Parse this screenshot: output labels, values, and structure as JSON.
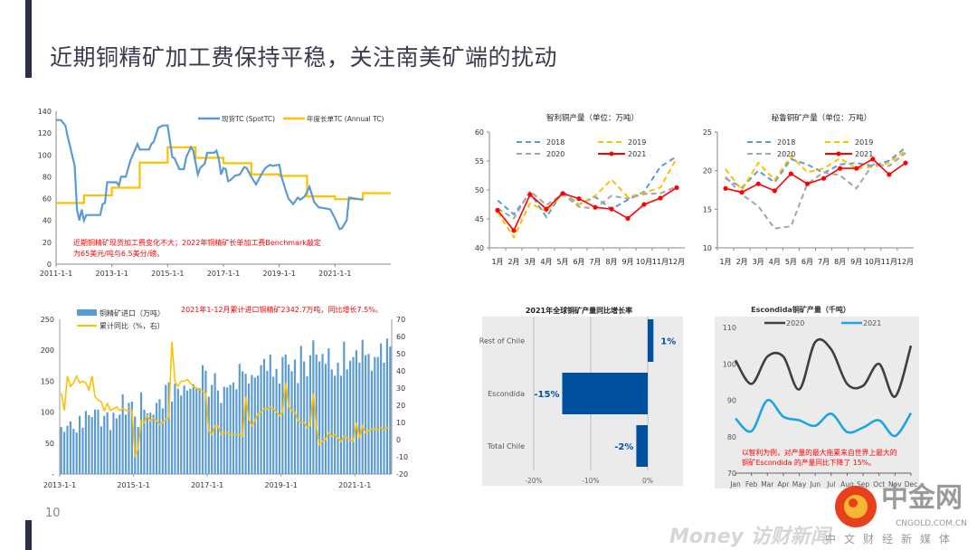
{
  "slide": {
    "title": "近期铜精矿加工费保持平稳，关注南美矿端的扰动",
    "page_number": "10",
    "watermark": {
      "brand": "中金网",
      "domain": "CNGOLD.COM.CN",
      "tagline": "中文财经新媒体",
      "sub": "Money 访财新闻"
    }
  },
  "colors": {
    "blue": "#5b9bd5",
    "yellow": "#ffc000",
    "gray": "#a5a5a5",
    "red": "#ff0000",
    "navy": "#0050a0",
    "dark": "#404040",
    "cyan": "#1ea5e0"
  },
  "chart_data": [
    {
      "type": "line",
      "ylim": [
        0,
        140
      ],
      "yticks": [
        "0",
        "20",
        "40",
        "60",
        "80",
        "100",
        "120",
        "140"
      ],
      "xticks": [
        "2011-1-1",
        "2013-1-1",
        "2015-1-1",
        "2017-1-1",
        "2019-1-1",
        "2021-1-1"
      ],
      "annotation": [
        "近期铜精矿现货加工费变化不大；2022年铜精矿长单加工费Benchmark敲定",
        "为65美元/吨与6.5美分/磅。"
      ],
      "series": [
        {
          "name": "现货TC (SpotTC)",
          "points": [
            [
              "2011-01",
              132
            ],
            [
              "2011-03",
              132
            ],
            [
              "2011-05",
              127
            ],
            [
              "2011-06",
              117
            ],
            [
              "2011-09",
              90
            ],
            [
              "2011-10",
              50
            ],
            [
              "2011-11",
              40
            ],
            [
              "2011-12",
              50
            ],
            [
              "2012-01",
              40
            ],
            [
              "2012-02",
              45
            ],
            [
              "2012-08",
              45
            ],
            [
              "2012-09",
              55
            ],
            [
              "2012-10",
              56
            ],
            [
              "2012-11",
              75
            ],
            [
              "2013-03",
              75
            ],
            [
              "2013-04",
              72
            ],
            [
              "2013-05",
              80
            ],
            [
              "2013-07",
              80
            ],
            [
              "2013-09",
              95
            ],
            [
              "2013-11",
              105
            ],
            [
              "2013-12",
              110
            ],
            [
              "2014-01",
              105
            ],
            [
              "2014-05",
              105
            ],
            [
              "2014-06",
              110
            ],
            [
              "2014-07",
              112
            ],
            [
              "2014-09",
              125
            ],
            [
              "2014-11",
              127
            ],
            [
              "2015-01",
              127
            ],
            [
              "2015-03",
              98
            ],
            [
              "2015-04",
              97
            ],
            [
              "2015-06",
              87
            ],
            [
              "2015-08",
              87
            ],
            [
              "2015-09",
              98
            ],
            [
              "2015-11",
              107
            ],
            [
              "2015-12",
              104
            ],
            [
              "2016-02",
              82
            ],
            [
              "2016-03",
              88
            ],
            [
              "2016-05",
              92
            ],
            [
              "2016-06",
              102
            ],
            [
              "2016-09",
              102
            ],
            [
              "2016-10",
              104
            ],
            [
              "2016-11",
              96
            ],
            [
              "2016-12",
              82
            ],
            [
              "2017-01",
              88
            ],
            [
              "2017-02",
              87
            ],
            [
              "2017-03",
              76
            ],
            [
              "2017-04",
              77
            ],
            [
              "2017-06",
              81
            ],
            [
              "2017-08",
              82
            ],
            [
              "2017-10",
              89
            ],
            [
              "2017-11",
              88
            ],
            [
              "2018-01",
              80
            ],
            [
              "2018-03",
              73
            ],
            [
              "2018-05",
              81
            ],
            [
              "2018-07",
              88
            ],
            [
              "2018-09",
              91
            ],
            [
              "2018-10",
              90
            ],
            [
              "2019-01",
              91
            ],
            [
              "2019-02",
              80
            ],
            [
              "2019-04",
              66
            ],
            [
              "2019-05",
              60
            ],
            [
              "2019-07",
              55
            ],
            [
              "2019-09",
              61
            ],
            [
              "2019-10",
              59
            ],
            [
              "2019-12",
              62
            ],
            [
              "2020-02",
              71
            ],
            [
              "2020-04",
              57
            ],
            [
              "2020-06",
              52
            ],
            [
              "2020-09",
              51
            ],
            [
              "2020-11",
              50
            ],
            [
              "2021-01",
              42
            ],
            [
              "2021-03",
              32
            ],
            [
              "2021-04",
              33
            ],
            [
              "2021-06",
              40
            ],
            [
              "2021-07",
              61
            ],
            [
              "2022-01",
              59
            ]
          ]
        },
        {
          "name": "年度长单TC (Annual TC)",
          "steps": [
            [
              2011,
              56
            ],
            [
              2012,
              63
            ],
            [
              2013,
              70
            ],
            [
              2014,
              93
            ],
            [
              2015,
              107
            ],
            [
              2016,
              97.35
            ],
            [
              2017,
              92.5
            ],
            [
              2018,
              82.25
            ],
            [
              2019,
              80.8
            ],
            [
              2020,
              62
            ],
            [
              2021,
              59.5
            ],
            [
              2022,
              65
            ]
          ]
        }
      ]
    },
    {
      "type": "line",
      "title": "智利铜产量（单位：万吨）",
      "ylim": [
        40,
        60
      ],
      "yticks": [
        "40",
        "45",
        "50",
        "55",
        "60"
      ],
      "categories": [
        "1月",
        "2月",
        "3月",
        "4月",
        "5月",
        "6月",
        "7月",
        "8月",
        "9月",
        "10月",
        "11月",
        "12月"
      ],
      "series": [
        {
          "name": "2018",
          "values": [
            48.2,
            45.8,
            49.5,
            45.3,
            49.7,
            47.5,
            48.8,
            46.7,
            48.3,
            49.7,
            54.0,
            55.8
          ]
        },
        {
          "name": "2019",
          "values": [
            46.2,
            41.8,
            47.7,
            46.3,
            49.3,
            47.5,
            49.0,
            51.8,
            48.8,
            49.5,
            50.4,
            55.5
          ]
        },
        {
          "name": "2020",
          "values": [
            46.8,
            45.1,
            49.8,
            47.4,
            49.3,
            47.1,
            46.8,
            49.0,
            48.5,
            49.3,
            49.4,
            50.6
          ]
        },
        {
          "name": "2021",
          "values": [
            46.5,
            43.0,
            49.2,
            46.7,
            49.4,
            48.5,
            47.0,
            46.7,
            45.1,
            47.5,
            48.6,
            50.4
          ]
        }
      ]
    },
    {
      "type": "line",
      "title": "秘鲁铜矿产量（单位：万吨）",
      "ylim": [
        10,
        25
      ],
      "yticks": [
        "10",
        "15",
        "20",
        "25"
      ],
      "categories": [
        "1月",
        "2月",
        "3月",
        "4月",
        "5月",
        "6月",
        "7月",
        "8月",
        "9月",
        "10月",
        "11月",
        "12月"
      ],
      "series": [
        {
          "name": "2018",
          "values": [
            19.0,
            17.8,
            20.0,
            18.5,
            21.5,
            20.8,
            19.7,
            20.8,
            21.0,
            20.6,
            21.3,
            23.0
          ]
        },
        {
          "name": "2019",
          "values": [
            20.2,
            17.5,
            21.0,
            18.8,
            21.9,
            19.8,
            20.3,
            21.6,
            20.3,
            20.5,
            21.0,
            22.6
          ]
        },
        {
          "name": "2020",
          "values": [
            19.2,
            16.9,
            15.4,
            12.5,
            12.8,
            18.3,
            19.8,
            19.4,
            17.7,
            20.8,
            20.6,
            22.3
          ]
        },
        {
          "name": "2021",
          "values": [
            17.7,
            17.2,
            18.3,
            17.4,
            19.6,
            18.3,
            19.0,
            20.3,
            20.3,
            21.5,
            19.5,
            21.0
          ]
        }
      ]
    },
    {
      "type": "bar",
      "ylim": [
        0,
        250
      ],
      "yticks": [
        "-",
        "50",
        "100",
        "150",
        "200",
        "250"
      ],
      "y2lim": [
        -20,
        70
      ],
      "y2ticks": [
        "-20",
        "-10",
        "0",
        "10",
        "20",
        "30",
        "40",
        "50",
        "60",
        "70"
      ],
      "xticks": [
        "2013-1-1",
        "2015-1-1",
        "2017-1-1",
        "2019-1-1",
        "2021-1-1"
      ],
      "annotation": "2021年1-12月累计进口铜精矿2342.7万吨，同比增长7.5%。",
      "series": [
        {
          "name": "铜精矿进口（万吨）",
          "by_year": {
            "2013": [
              76,
              68,
              78,
              85,
              73,
              67,
              94,
              75,
              102,
              95,
              92,
              104
            ],
            "2014": [
              104,
              77,
              94,
              100,
              71,
              99,
              90,
              96,
              129,
              96,
              115,
              117
            ],
            "2015": [
              93,
              76,
              132,
              104,
              98,
              99,
              96,
              115,
              121,
              106,
              144,
              148
            ],
            "2016": [
              117,
              146,
              138,
              127,
              143,
              135,
              138,
              145,
              139,
              139,
              176,
              167
            ],
            "2017": [
              125,
              144,
              163,
              135,
              115,
              141,
              140,
              144,
              148,
              137,
              178,
              166
            ],
            "2018": [
              162,
              146,
              160,
              156,
              159,
              176,
              186,
              167,
              193,
              157,
              170,
              146
            ],
            "2019": [
              189,
              193,
              177,
              166,
              185,
              147,
              207,
              182,
              158,
              192,
              216,
              193
            ],
            "2020": [
              182,
              194,
              178,
              203,
              169,
              159,
              180,
              159,
              214,
              169,
              183,
              189
            ],
            "2021": [
              200,
              180,
              217,
              192,
              194,
              167,
              189,
              189,
              211,
              180,
              219,
              206
            ]
          }
        },
        {
          "name": "累计同比（%，右）",
          "axis": "right",
          "by_year": {
            "2013": [
              27,
              17,
              37,
              31,
              33,
              37,
              33,
              34,
              33,
              29,
              37,
              25
            ],
            "2014": [
              23,
              22,
              17,
              21,
              17,
              18,
              19,
              17,
              18,
              17,
              17,
              17
            ],
            "2015": [
              -10,
              -5,
              11,
              10,
              14,
              11,
              12,
              11,
              9,
              10,
              12,
              13
            ],
            "2016": [
              57,
              34,
              31,
              34,
              34,
              35,
              33,
              31,
              30,
              29,
              28,
              27
            ],
            "2017": [
              5,
              3,
              8,
              8,
              3,
              4,
              4,
              3,
              3,
              3,
              3,
              2
            ],
            "2018": [
              25,
              12,
              8,
              11,
              15,
              16,
              18,
              18,
              19,
              18,
              16,
              14
            ],
            "2019": [
              16,
              33,
              19,
              17,
              16,
              11,
              10,
              10,
              7,
              8,
              27,
              8
            ],
            "2020": [
              -3,
              -1,
              0,
              4,
              2,
              3,
              1,
              -1,
              2,
              1,
              0,
              -1
            ],
            "2021": [
              10,
              1,
              8,
              4,
              5,
              6,
              6,
              6,
              7,
              6,
              7,
              7.5
            ]
          }
        }
      ]
    },
    {
      "type": "bar",
      "orientation": "horizontal",
      "title": "2021年全球铜矿产量同比增长率",
      "categories": [
        "Rest of Chile",
        "Escondida",
        "Total Chile"
      ],
      "values": [
        1,
        -15,
        -2
      ],
      "data_labels": [
        "1%",
        "-15%",
        "-2%"
      ],
      "xticks": [
        "-20%",
        "-10%",
        "0%"
      ],
      "xlim": [
        -20,
        5
      ]
    },
    {
      "type": "line",
      "title": "Escondida铜矿产量（千吨）",
      "ylim": [
        70,
        110
      ],
      "yticks": [
        "70",
        "80",
        "90",
        "100",
        "110"
      ],
      "categories": [
        "Jan",
        "Feb",
        "Mar",
        "Apr",
        "May",
        "Jun",
        "Jul",
        "Aug",
        "Sep",
        "Oct",
        "Nov",
        "Dec"
      ],
      "annotation": [
        "以智利为例，对产量的最大拖累来自世界上最大的",
        "铜矿Escondida 的产量同比下降了 15%。"
      ],
      "series": [
        {
          "name": "2020",
          "values": [
            101,
            94.5,
            102,
            102,
            93,
            106,
            104,
            94.5,
            94,
            100,
            91,
            105
          ]
        },
        {
          "name": "2021",
          "values": [
            85,
            81.5,
            90,
            85.5,
            84.5,
            83,
            86.3,
            81.3,
            82.5,
            84.5,
            80.2,
            86.5
          ]
        }
      ]
    }
  ]
}
